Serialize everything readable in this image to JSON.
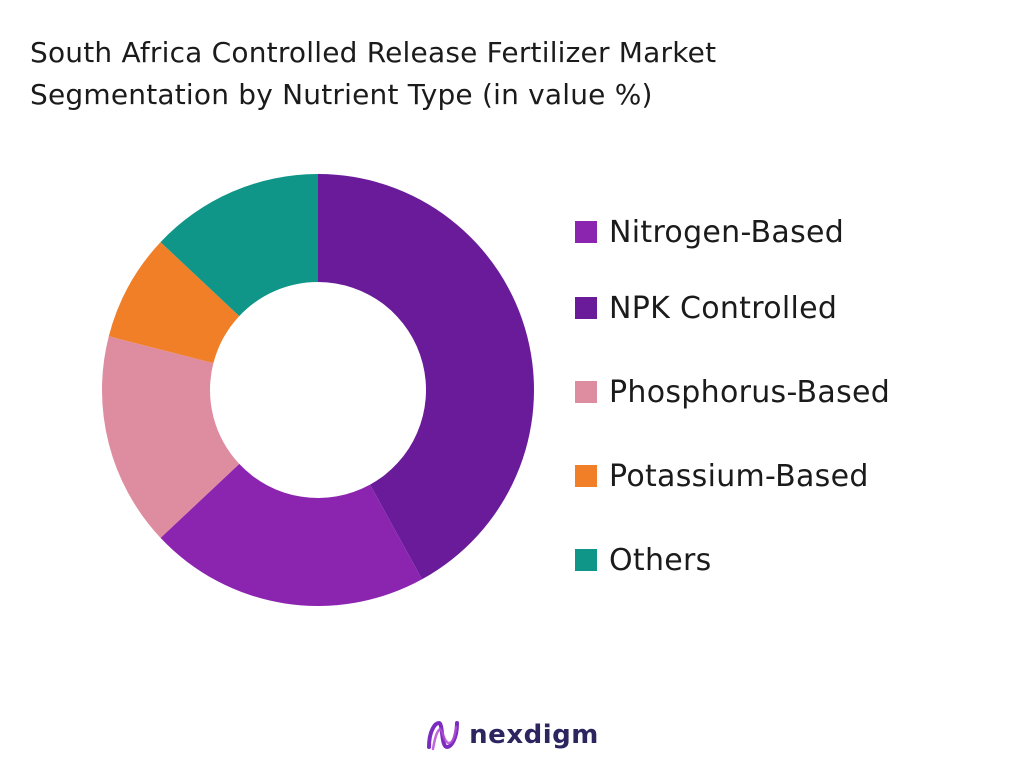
{
  "chart_data": {
    "type": "pie",
    "variant": "donut",
    "title": "South Africa Controlled Release Fertilizer Market Segmentation by Nutrient Type (in value %)",
    "title_lines": [
      "South Africa Controlled Release Fertilizer Market",
      "Segmentation by Nutrient Type (in value %)"
    ],
    "categories": [
      "Nitrogen-Based",
      "NPK Controlled",
      "Phosphorus-Based",
      "Potassium-Based",
      "Others"
    ],
    "values": [
      21,
      42,
      16,
      8,
      13
    ],
    "colors": [
      "#8b25b0",
      "#6a1b9a",
      "#de8ca0",
      "#f07f28",
      "#0f9688"
    ],
    "draw_order": [
      "NPK Controlled",
      "Nitrogen-Based",
      "Phosphorus-Based",
      "Potassium-Based",
      "Others"
    ],
    "start": "12 o'clock",
    "direction": "clockwise",
    "legend_position": "right"
  },
  "brand": {
    "name": "nexdigm",
    "logo_icon": "nexdigm-logo-icon",
    "logo_colors": [
      "#7b2cbf",
      "#b04fd6"
    ]
  }
}
